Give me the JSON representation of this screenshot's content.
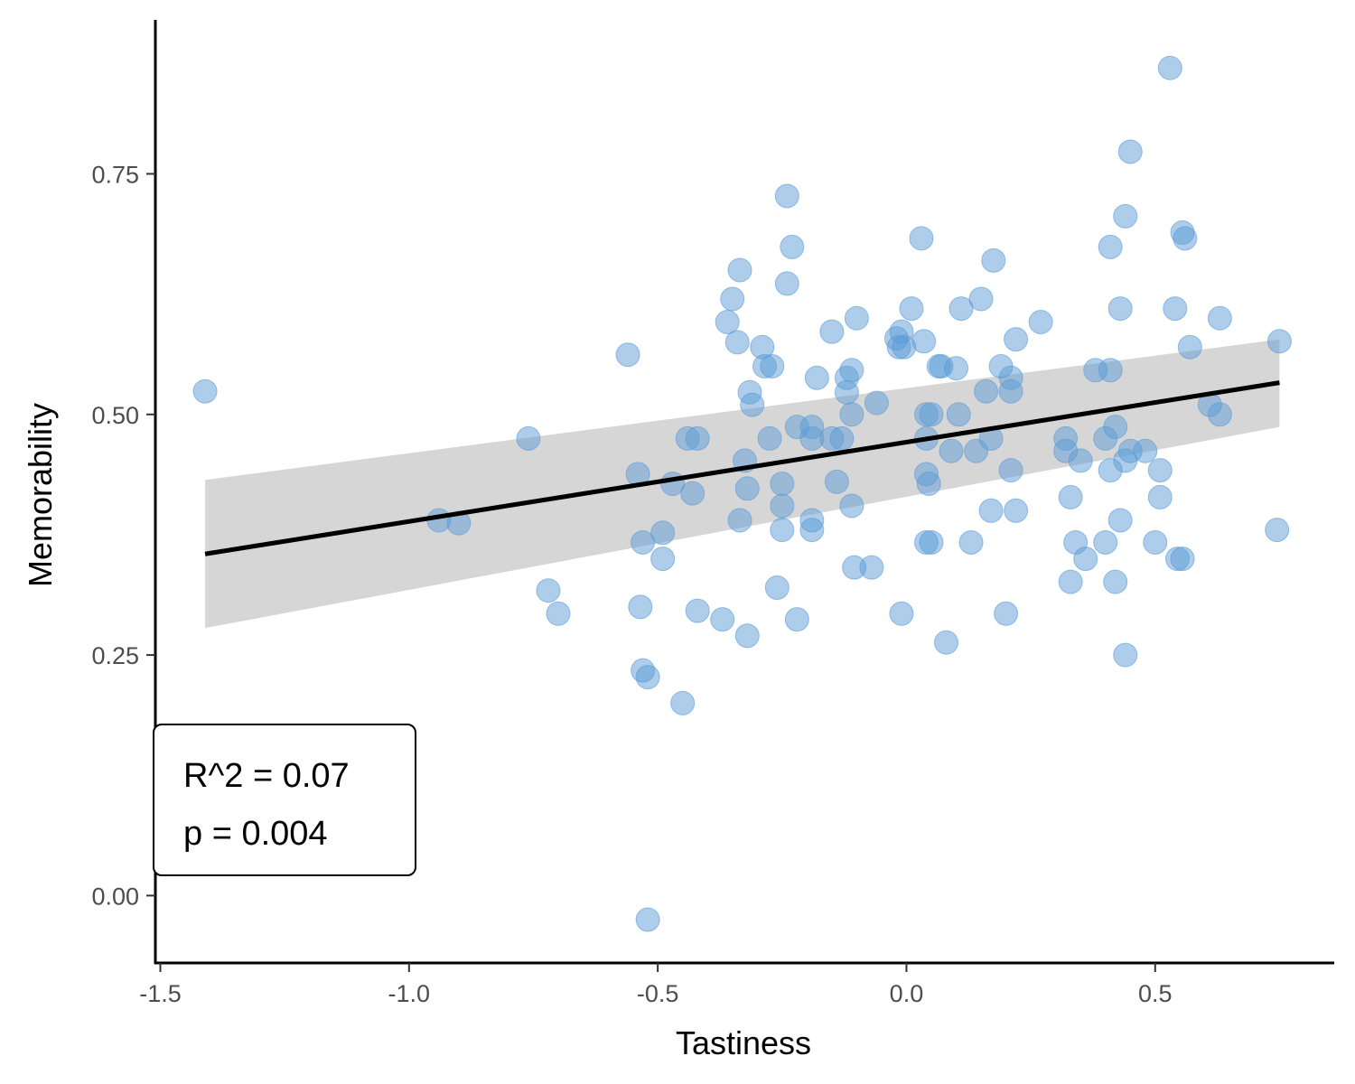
{
  "chart_data": {
    "type": "scatter",
    "title": "",
    "xlabel": "Tastiness",
    "ylabel": "Memorability",
    "xlim": [
      -1.51,
      0.86
    ],
    "ylim": [
      -0.07,
      0.91
    ],
    "xticks": [
      -1.5,
      -1.0,
      -0.5,
      0.0,
      0.5
    ],
    "xtick_labels": [
      "-1.5",
      "-1.0",
      "-0.5",
      "0.0",
      "0.5"
    ],
    "yticks": [
      0.0,
      0.25,
      0.5,
      0.75
    ],
    "ytick_labels": [
      "0.00",
      "0.25",
      "0.50",
      "0.75"
    ],
    "grid": false,
    "point_color": "#5b9bd5",
    "line_color": "#000000",
    "band_color": "#d6d6d6",
    "regression": {
      "x": [
        -1.41,
        0.75
      ],
      "y": [
        0.355,
        0.533
      ],
      "ci_lower": [
        0.278,
        0.487
      ],
      "ci_upper": [
        0.432,
        0.578
      ]
    },
    "annotation": {
      "r2": "R^2 = 0.07",
      "p": "p = 0.004"
    },
    "points": [
      [
        -1.41,
        0.524
      ],
      [
        -0.94,
        0.39
      ],
      [
        -0.9,
        0.387
      ],
      [
        -0.76,
        0.475
      ],
      [
        -0.72,
        0.317
      ],
      [
        -0.7,
        0.293
      ],
      [
        -0.56,
        0.562
      ],
      [
        -0.54,
        0.438
      ],
      [
        -0.535,
        0.3
      ],
      [
        -0.53,
        0.367
      ],
      [
        -0.53,
        0.234
      ],
      [
        -0.52,
        0.227
      ],
      [
        -0.52,
        -0.025
      ],
      [
        -0.49,
        0.35
      ],
      [
        -0.49,
        0.377
      ],
      [
        -0.47,
        0.428
      ],
      [
        -0.45,
        0.2
      ],
      [
        -0.44,
        0.475
      ],
      [
        -0.43,
        0.418
      ],
      [
        -0.42,
        0.475
      ],
      [
        -0.42,
        0.296
      ],
      [
        -0.37,
        0.287
      ],
      [
        -0.36,
        0.596
      ],
      [
        -0.35,
        0.62
      ],
      [
        -0.34,
        0.575
      ],
      [
        -0.335,
        0.65
      ],
      [
        -0.335,
        0.39
      ],
      [
        -0.325,
        0.452
      ],
      [
        -0.32,
        0.423
      ],
      [
        -0.32,
        0.27
      ],
      [
        -0.315,
        0.523
      ],
      [
        -0.31,
        0.51
      ],
      [
        -0.29,
        0.57
      ],
      [
        -0.285,
        0.55
      ],
      [
        -0.27,
        0.55
      ],
      [
        -0.275,
        0.475
      ],
      [
        -0.26,
        0.32
      ],
      [
        -0.25,
        0.428
      ],
      [
        -0.25,
        0.405
      ],
      [
        -0.25,
        0.38
      ],
      [
        -0.24,
        0.636
      ],
      [
        -0.24,
        0.727
      ],
      [
        -0.23,
        0.674
      ],
      [
        -0.22,
        0.487
      ],
      [
        -0.22,
        0.287
      ],
      [
        -0.19,
        0.487
      ],
      [
        -0.19,
        0.475
      ],
      [
        -0.18,
        0.538
      ],
      [
        -0.19,
        0.39
      ],
      [
        -0.19,
        0.38
      ],
      [
        -0.15,
        0.586
      ],
      [
        -0.15,
        0.475
      ],
      [
        -0.14,
        0.43
      ],
      [
        -0.13,
        0.475
      ],
      [
        -0.12,
        0.538
      ],
      [
        -0.12,
        0.523
      ],
      [
        -0.11,
        0.546
      ],
      [
        -0.11,
        0.5
      ],
      [
        -0.11,
        0.405
      ],
      [
        -0.105,
        0.341
      ],
      [
        -0.1,
        0.6
      ],
      [
        -0.06,
        0.512
      ],
      [
        -0.07,
        0.341
      ],
      [
        -0.02,
        0.579
      ],
      [
        -0.015,
        0.57
      ],
      [
        -0.01,
        0.586
      ],
      [
        -0.005,
        0.57
      ],
      [
        -0.01,
        0.293
      ],
      [
        0.01,
        0.61
      ],
      [
        0.03,
        0.683
      ],
      [
        0.035,
        0.576
      ],
      [
        0.04,
        0.5
      ],
      [
        0.04,
        0.475
      ],
      [
        0.04,
        0.438
      ],
      [
        0.04,
        0.367
      ],
      [
        0.045,
        0.428
      ],
      [
        0.05,
        0.5
      ],
      [
        0.05,
        0.367
      ],
      [
        0.065,
        0.55
      ],
      [
        0.07,
        0.55
      ],
      [
        0.08,
        0.263
      ],
      [
        0.09,
        0.462
      ],
      [
        0.1,
        0.548
      ],
      [
        0.105,
        0.5
      ],
      [
        0.11,
        0.61
      ],
      [
        0.13,
        0.367
      ],
      [
        0.14,
        0.462
      ],
      [
        0.15,
        0.62
      ],
      [
        0.16,
        0.524
      ],
      [
        0.17,
        0.475
      ],
      [
        0.17,
        0.4
      ],
      [
        0.175,
        0.66
      ],
      [
        0.19,
        0.55
      ],
      [
        0.2,
        0.293
      ],
      [
        0.21,
        0.538
      ],
      [
        0.21,
        0.524
      ],
      [
        0.21,
        0.442
      ],
      [
        0.22,
        0.578
      ],
      [
        0.22,
        0.4
      ],
      [
        0.27,
        0.596
      ],
      [
        0.32,
        0.475
      ],
      [
        0.32,
        0.462
      ],
      [
        0.33,
        0.414
      ],
      [
        0.33,
        0.326
      ],
      [
        0.34,
        0.367
      ],
      [
        0.35,
        0.452
      ],
      [
        0.36,
        0.35
      ],
      [
        0.38,
        0.546
      ],
      [
        0.4,
        0.367
      ],
      [
        0.4,
        0.475
      ],
      [
        0.41,
        0.546
      ],
      [
        0.41,
        0.674
      ],
      [
        0.41,
        0.442
      ],
      [
        0.42,
        0.487
      ],
      [
        0.42,
        0.326
      ],
      [
        0.43,
        0.61
      ],
      [
        0.43,
        0.39
      ],
      [
        0.44,
        0.706
      ],
      [
        0.44,
        0.452
      ],
      [
        0.44,
        0.25
      ],
      [
        0.45,
        0.773
      ],
      [
        0.45,
        0.462
      ],
      [
        0.48,
        0.462
      ],
      [
        0.5,
        0.367
      ],
      [
        0.51,
        0.442
      ],
      [
        0.51,
        0.414
      ],
      [
        0.53,
        0.86
      ],
      [
        0.54,
        0.61
      ],
      [
        0.545,
        0.35
      ],
      [
        0.555,
        0.35
      ],
      [
        0.555,
        0.689
      ],
      [
        0.56,
        0.683
      ],
      [
        0.57,
        0.57
      ],
      [
        0.61,
        0.51
      ],
      [
        0.63,
        0.6
      ],
      [
        0.63,
        0.5
      ],
      [
        0.75,
        0.576
      ],
      [
        0.745,
        0.38
      ]
    ]
  }
}
